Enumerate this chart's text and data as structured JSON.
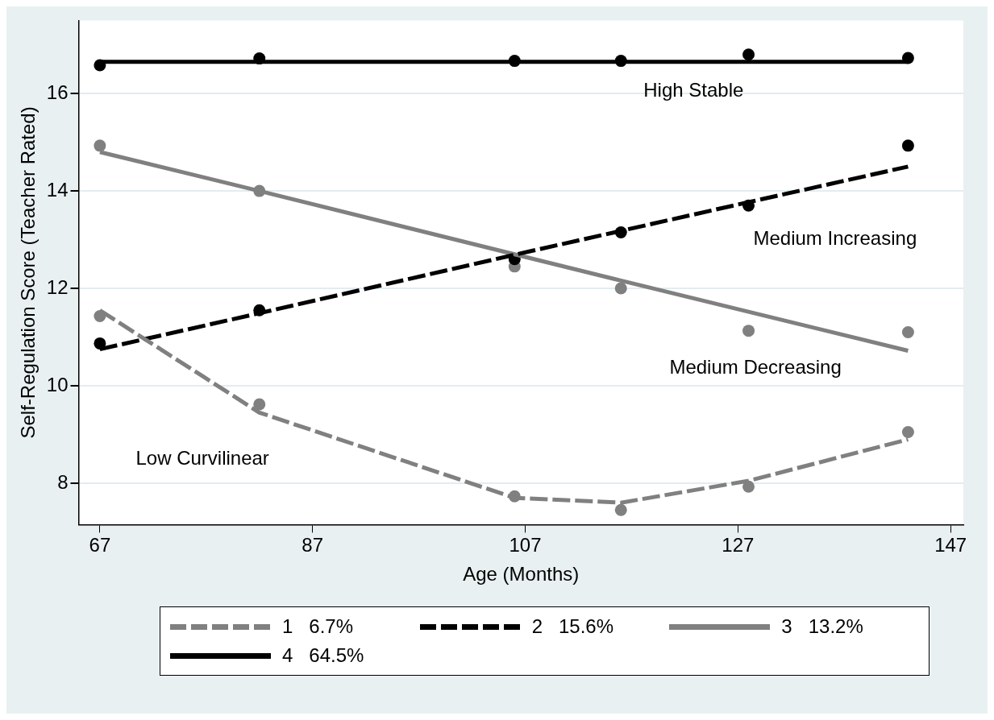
{
  "chart_data": {
    "type": "line",
    "xlabel": "Age (Months)",
    "ylabel": "Self-Regulation Score (Teacher Rated)",
    "x": [
      67,
      82,
      106,
      116,
      128,
      143
    ],
    "xlim": [
      65,
      148.2
    ],
    "xticks": [
      67,
      87,
      107,
      127,
      147
    ],
    "ylim": [
      7.15,
      17.5
    ],
    "yticks": [
      8,
      10,
      12,
      14,
      16
    ],
    "grid": "y",
    "legend": "bottom",
    "series": [
      {
        "name": "1   6.7%",
        "type": "line",
        "color": "#808080",
        "line_style": "dashed",
        "marker": "none",
        "values": [
          11.55,
          9.45,
          7.7,
          7.6,
          8.05,
          8.9
        ]
      },
      {
        "name": "2   15.6%",
        "type": "line",
        "color": "#000000",
        "line_style": "dashed",
        "marker": "none",
        "values": [
          10.75,
          11.49,
          12.69,
          13.18,
          13.77,
          14.5
        ]
      },
      {
        "name": "3   13.2%",
        "type": "line",
        "color": "#808080",
        "line_style": "solid",
        "marker": "none",
        "values": [
          14.8,
          14.0,
          12.7,
          12.16,
          11.52,
          10.72
        ]
      },
      {
        "name": "4   64.5%",
        "type": "line",
        "color": "#000000",
        "line_style": "solid",
        "marker": "none",
        "values": [
          16.65,
          16.65,
          16.65,
          16.65,
          16.65,
          16.65
        ]
      },
      {
        "type": "scatter",
        "color": "#808080",
        "marker": "circle",
        "values": [
          11.43,
          9.62,
          7.73,
          7.45,
          7.93,
          9.05
        ]
      },
      {
        "type": "scatter",
        "color": "#000000",
        "marker": "circle",
        "values": [
          10.87,
          11.55,
          12.6,
          13.15,
          13.7,
          14.93
        ]
      },
      {
        "type": "scatter",
        "color": "#808080",
        "marker": "circle",
        "values": [
          14.93,
          14.0,
          12.45,
          12.0,
          11.13,
          11.1
        ]
      },
      {
        "type": "scatter",
        "color": "#000000",
        "marker": "circle",
        "values": [
          16.58,
          16.72,
          16.67,
          16.67,
          16.8,
          16.73
        ]
      }
    ],
    "annotations": [
      "High Stable",
      "Medium Increasing",
      "Medium Decreasing",
      "Low Curvilinear"
    ]
  }
}
